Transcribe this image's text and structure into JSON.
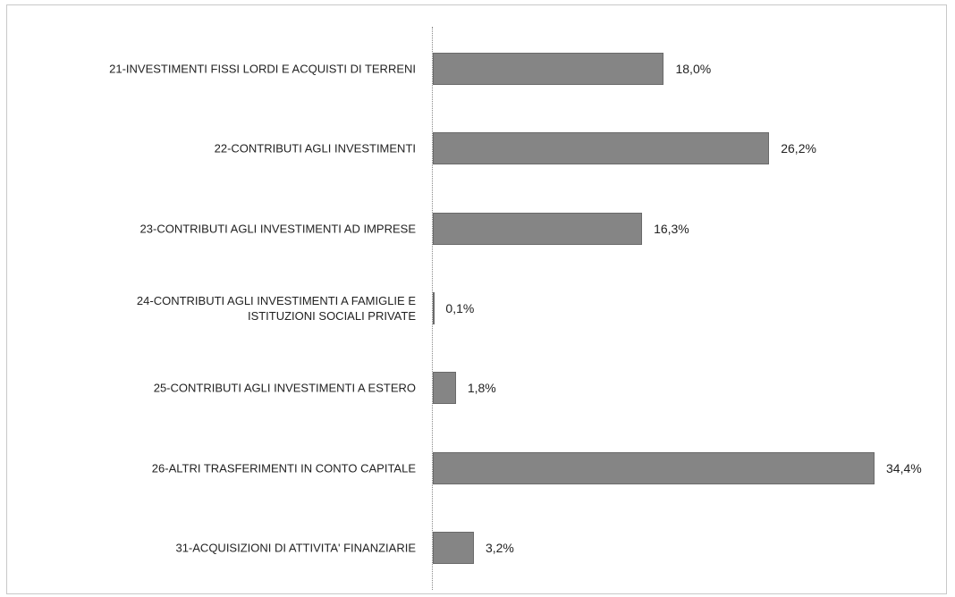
{
  "chart_data": {
    "type": "bar",
    "orientation": "horizontal",
    "categories": [
      "21-INVESTIMENTI FISSI LORDI E ACQUISTI DI TERRENI",
      "22-CONTRIBUTI AGLI INVESTIMENTI",
      "23-CONTRIBUTI AGLI INVESTIMENTI AD IMPRESE",
      "24-CONTRIBUTI AGLI INVESTIMENTI A FAMIGLIE E\nISTITUZIONI SOCIALI PRIVATE",
      "25-CONTRIBUTI AGLI INVESTIMENTI A ESTERO",
      "26-ALTRI TRASFERIMENTI IN CONTO CAPITALE",
      "31-ACQUISIZIONI DI ATTIVITA' FINANZIARIE"
    ],
    "values": [
      18.0,
      26.2,
      16.3,
      0.1,
      1.8,
      34.4,
      3.2
    ],
    "value_labels": [
      "18,0%",
      "26,2%",
      "16,3%",
      "0,1%",
      "1,8%",
      "34,4%",
      "3,2%"
    ],
    "color": "#858585"
  }
}
